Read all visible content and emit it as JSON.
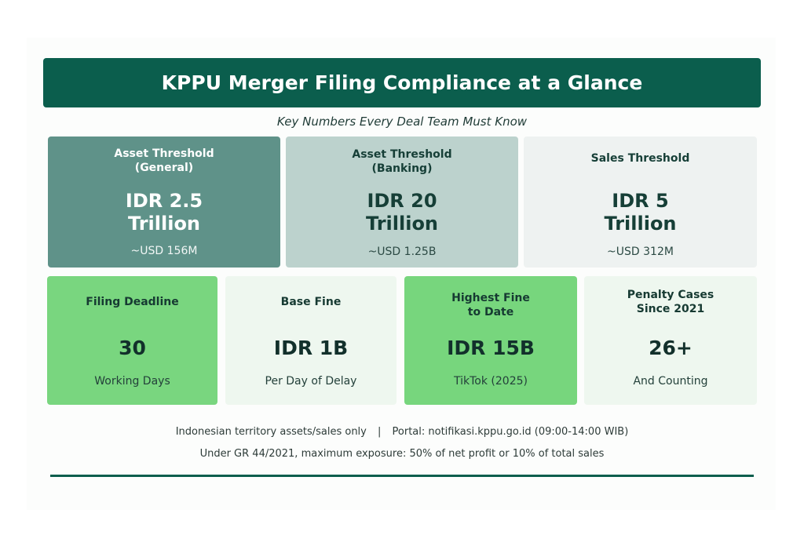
{
  "title": "KPPU Merger Filing Compliance at a Glance",
  "subtitle": "Key Numbers Every Deal Team Must Know",
  "top_cards": [
    {
      "label_line1": "Asset Threshold",
      "label_line2": "(General)",
      "value_line1": "IDR 2.5",
      "value_line2": "Trillion",
      "note": "~USD 156M"
    },
    {
      "label_line1": "Asset Threshold",
      "label_line2": "(Banking)",
      "value_line1": "IDR 20",
      "value_line2": "Trillion",
      "note": "~USD 1.25B"
    },
    {
      "label_line1": "Sales Threshold",
      "label_line2": "",
      "value_line1": "IDR 5",
      "value_line2": "Trillion",
      "note": "~USD 312M"
    }
  ],
  "bottom_cards": [
    {
      "label_line1": "Filing Deadline",
      "label_line2": "",
      "value": "30",
      "note": "Working Days"
    },
    {
      "label_line1": "Base Fine",
      "label_line2": "",
      "value": "IDR 1B",
      "note": "Per Day of Delay"
    },
    {
      "label_line1": "Highest Fine",
      "label_line2": "to Date",
      "value": "IDR 15B",
      "note": "TikTok (2025)"
    },
    {
      "label_line1": "Penalty Cases",
      "label_line2": "Since 2021",
      "value": "26+",
      "note": "And Counting"
    }
  ],
  "footer": {
    "line1_left": "Indonesian territory assets/sales only",
    "separator": "|",
    "line1_right": "Portal: notifikasi.kppu.go.id (09:00-14:00 WIB)",
    "line2": "Under GR 44/2021, maximum exposure: 50% of net profit or 10% of total sales"
  },
  "colors": {
    "primary": "#0b5e4d",
    "card_dark": "#5f9289",
    "card_mid": "#bcd2cd",
    "card_light": "#eef2f1",
    "card_green": "#79d67f",
    "card_pale_green": "#eef7ef"
  }
}
